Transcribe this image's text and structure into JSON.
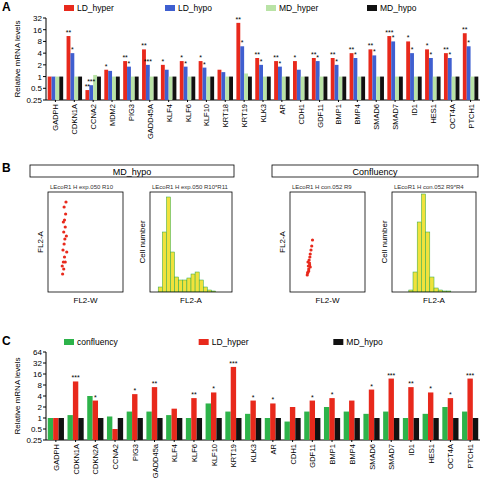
{
  "chart_data": [
    {
      "panel": "A",
      "type": "bar",
      "log": "y",
      "legend": "top",
      "ylabel": "Relative mRNA levels",
      "categories": [
        "GADPH",
        "CDKN1A",
        "CCNA2",
        "MDM2",
        "PIG3",
        "GADD45A",
        "KLF4",
        "KLF6",
        "KLF10",
        "KRT18",
        "KRT19",
        "KLK3",
        "AR",
        "CDH1",
        "GDF11",
        "BMP1",
        "BMP4",
        "SMAD6",
        "SMAD7",
        "ID1",
        "HES1",
        "OCT4A",
        "PTCH1"
      ],
      "series": [
        {
          "name": "LD_hyper",
          "color": "#e8291c",
          "values": [
            1,
            11,
            0.45,
            1.5,
            2.5,
            5,
            2,
            2.5,
            2.5,
            1.5,
            24,
            3,
            2.5,
            2.5,
            3,
            3,
            4,
            5,
            11,
            8,
            5,
            4,
            13
          ],
          "significance": [
            null,
            "**",
            "**",
            "*",
            "**",
            "**",
            "*",
            "*",
            "*",
            null,
            "**",
            "**",
            "**",
            "*",
            "**",
            "**",
            "**",
            "**",
            "***",
            "*",
            "*",
            "**",
            "**"
          ]
        },
        {
          "name": "LD_hypo",
          "color": "#3f5fd0",
          "values": [
            1,
            4,
            0.6,
            1.4,
            1.8,
            2,
            1.5,
            1.8,
            1.7,
            1.3,
            6,
            2,
            1.8,
            1.5,
            2.5,
            2,
            3,
            3.5,
            8,
            4,
            3,
            3,
            6
          ],
          "significance": [
            null,
            "*",
            "***",
            null,
            "*",
            "***",
            null,
            "*",
            "*",
            null,
            "*",
            "*",
            "*",
            null,
            "*",
            "*",
            "*",
            "*",
            "*",
            "*",
            "*",
            "*",
            "*"
          ]
        },
        {
          "name": "MD_hyper",
          "color": "#b9e3a6",
          "values": [
            1,
            1,
            1.1,
            1,
            1,
            1,
            1,
            1,
            1,
            1,
            1.2,
            1,
            1,
            1,
            1,
            1,
            1,
            1,
            1,
            1,
            1,
            1,
            1
          ]
        },
        {
          "name": "MD_hypo",
          "color": "#111111",
          "values": [
            1,
            1,
            1,
            1,
            1,
            1,
            1,
            1,
            1,
            1,
            1,
            1,
            1,
            1,
            1,
            1,
            1,
            1,
            1,
            1,
            1,
            1,
            1
          ]
        }
      ],
      "ylim": [
        0.25,
        32
      ],
      "yticks": [
        0.25,
        0.5,
        1,
        2,
        4,
        8,
        16,
        32
      ]
    },
    {
      "panel": "B",
      "type": "scatter",
      "title": "MD_hypo",
      "annotation": "LEcoR1 H exp.050 R10",
      "xlabel": "FL2-W",
      "ylabel": "FL2-A",
      "color": "#e8291c",
      "tick_labels": false,
      "x": [
        195,
        210,
        205,
        220,
        200,
        215,
        225,
        210,
        230,
        220,
        235,
        215,
        240,
        190,
        250,
        230,
        205,
        245
      ],
      "values": [
        180,
        230,
        300,
        350,
        420,
        480,
        530,
        600,
        650,
        720,
        780,
        850,
        900,
        260,
        400,
        300,
        700,
        560
      ],
      "xlim": [
        0,
        1000
      ],
      "ylim": [
        0,
        1000
      ]
    },
    {
      "type": "histogram",
      "annotation": "LEcoR1 H exp.050 R10*R11",
      "xlabel": "FL2-A",
      "ylabel": "Cell number",
      "color": "#f0e23c",
      "tick_labels": false,
      "bins": [
        0,
        50,
        100,
        150,
        200,
        250,
        300,
        350,
        400,
        450,
        500,
        550,
        600,
        650,
        700,
        750,
        800,
        850,
        900,
        950,
        1000
      ],
      "values": [
        0,
        0,
        5,
        60,
        95,
        40,
        15,
        12,
        12,
        14,
        18,
        20,
        12,
        5,
        2,
        1,
        0,
        0,
        0,
        0
      ],
      "xlim": [
        0,
        1000
      ],
      "ylim": [
        0,
        100
      ]
    },
    {
      "type": "scatter",
      "title": "Confluency",
      "annotation": "LEcoR1 H con.052 R9",
      "xlabel": "FL2-W",
      "ylabel": "FL2-A",
      "color": "#e8291c",
      "tick_labels": false,
      "x": [
        230,
        240,
        250,
        245,
        260,
        255,
        265,
        270,
        250,
        280,
        240,
        270,
        290,
        300,
        235,
        262
      ],
      "values": [
        170,
        200,
        230,
        260,
        290,
        320,
        350,
        380,
        210,
        420,
        300,
        250,
        460,
        520,
        190,
        270
      ],
      "xlim": [
        0,
        1000
      ],
      "ylim": [
        0,
        1000
      ]
    },
    {
      "type": "histogram",
      "annotation": "LEcoR1 H con.052 R9*R4",
      "xlabel": "FL2-A",
      "ylabel": "Cell number",
      "color": "#f0e23c",
      "tick_labels": false,
      "bins": [
        0,
        50,
        100,
        150,
        200,
        250,
        300,
        350,
        400,
        450,
        500,
        550,
        600,
        650,
        700,
        750,
        800,
        850,
        900,
        950,
        1000
      ],
      "values": [
        0,
        0,
        0,
        0,
        2,
        20,
        70,
        98,
        60,
        15,
        4,
        2,
        1,
        1,
        0,
        0,
        0,
        0,
        0,
        0
      ],
      "xlim": [
        0,
        1000
      ],
      "ylim": [
        0,
        100
      ]
    },
    {
      "panel": "C",
      "type": "bar",
      "log": "y",
      "legend": "top",
      "ylabel": "Relative mRNA levels",
      "categories": [
        "GADPH",
        "CDKN1A",
        "CDKN2A",
        "CCNA2",
        "PIG3",
        "GADD45a",
        "KLF4",
        "KLF6",
        "KLF10",
        "KRT19",
        "KLK3",
        "AR",
        "CDH1",
        "GDF11",
        "BMP1",
        "BMP4",
        "SMAD6",
        "SMAD7",
        "ID1",
        "HES1",
        "OCT4A",
        "PTCH1"
      ],
      "series": [
        {
          "name": "confluency",
          "color": "#2db34a",
          "values": [
            1,
            1.2,
            4,
            1.1,
            1.5,
            1.5,
            1.2,
            1,
            2.5,
            1.5,
            1.3,
            1,
            0.8,
            1.5,
            2,
            1.5,
            1.3,
            1.5,
            1,
            1.3,
            2,
            1.5
          ]
        },
        {
          "name": "LD_hyper",
          "color": "#e8291c",
          "values": [
            1,
            10,
            3,
            0.5,
            4.5,
            7,
            1.8,
            3.5,
            5,
            25,
            3,
            2.5,
            2,
            3,
            3.5,
            3,
            6,
            12,
            7,
            5,
            3.5,
            12
          ],
          "significance": [
            null,
            "***",
            "*",
            null,
            "*",
            "**",
            null,
            "**",
            "*",
            "***",
            "*",
            "*",
            null,
            "*",
            "*",
            null,
            "*",
            "***",
            "**",
            "*",
            "*",
            "***"
          ]
        },
        {
          "name": "MD_hypo",
          "color": "#111111",
          "values": [
            1,
            1,
            1,
            1,
            1,
            1,
            1,
            1,
            1,
            1,
            1,
            1,
            1,
            1,
            1,
            1,
            1,
            1,
            1,
            1,
            1,
            1
          ]
        }
      ],
      "ylim": [
        0.25,
        64
      ],
      "yticks": [
        0.25,
        0.5,
        1,
        2,
        4,
        8,
        16,
        32,
        64
      ]
    }
  ]
}
